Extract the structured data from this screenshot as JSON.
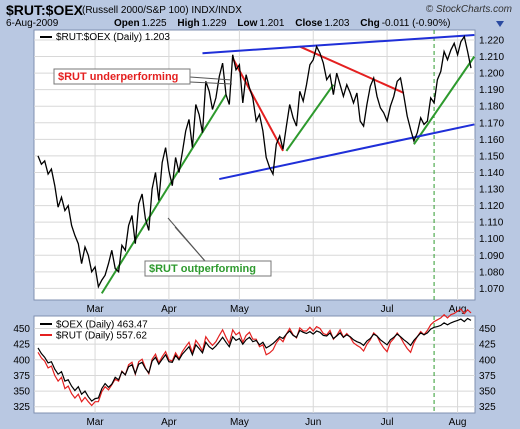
{
  "header": {
    "symbol": "$RUT:$OEX",
    "description": "(Russell 2000/S&P 100)  INDX/INDX",
    "credit": "© StockCharts.com",
    "date": "6-Aug-2009",
    "open_label": "Open",
    "open": "1.225",
    "high_label": "High",
    "high": "1.229",
    "low_label": "Low",
    "low": "1.201",
    "close_label": "Close",
    "close": "1.203",
    "chg_label": "Chg",
    "chg": "-0.011 (-0.90%)"
  },
  "colors": {
    "ratio_line": "#000000",
    "trend_green": "#2e9a2e",
    "trend_red": "#e42020",
    "channel_blue": "#1f2fd8",
    "oex_line": "#000000",
    "rut_line": "#e42020",
    "marker_dashed": "#2e9a2e",
    "panel_bg": "#ffffff",
    "frame_bg": "#b9c8e2"
  },
  "chart_data": [
    {
      "type": "line",
      "panel": "main",
      "legend": "$RUT:$OEX (Daily) 1.203",
      "x_labels": [
        "Mar",
        "Apr",
        "May",
        "Jun",
        "Jul",
        "Aug"
      ],
      "y_ticks": [
        1.07,
        1.08,
        1.09,
        1.1,
        1.11,
        1.12,
        1.13,
        1.14,
        1.15,
        1.16,
        1.17,
        1.18,
        1.19,
        1.2,
        1.21,
        1.22
      ],
      "ylim": [
        1.063,
        1.226
      ],
      "series": [
        {
          "name": "$RUT:$OEX (Daily)",
          "values": [
            1.15,
            1.145,
            1.147,
            1.139,
            1.142,
            1.132,
            1.119,
            1.125,
            1.117,
            1.12,
            1.108,
            1.102,
            1.097,
            1.085,
            1.095,
            1.09,
            1.08,
            1.083,
            1.071,
            1.075,
            1.078,
            1.085,
            1.093,
            1.082,
            1.08,
            1.096,
            1.093,
            1.108,
            1.114,
            1.097,
            1.121,
            1.127,
            1.112,
            1.105,
            1.13,
            1.14,
            1.123,
            1.146,
            1.155,
            1.141,
            1.132,
            1.149,
            1.14,
            1.152,
            1.165,
            1.172,
            1.155,
            1.181,
            1.175,
            1.164,
            1.195,
            1.189,
            1.178,
            1.185,
            1.198,
            1.206,
            1.187,
            1.181,
            1.211,
            1.202,
            1.205,
            1.182,
            1.199,
            1.191,
            1.185,
            1.171,
            1.175,
            1.165,
            1.149,
            1.143,
            1.139,
            1.157,
            1.162,
            1.154,
            1.168,
            1.181,
            1.173,
            1.168,
            1.189,
            1.183,
            1.193,
            1.205,
            1.208,
            1.216,
            1.212,
            1.206,
            1.196,
            1.199,
            1.187,
            1.2,
            1.193,
            1.186,
            1.193,
            1.188,
            1.182,
            1.188,
            1.171,
            1.168,
            1.181,
            1.192,
            1.197,
            1.186,
            1.179,
            1.176,
            1.171,
            1.18,
            1.186,
            1.195,
            1.197,
            1.186,
            1.174,
            1.166,
            1.159,
            1.164,
            1.173,
            1.169,
            1.171,
            1.185,
            1.182,
            1.196,
            1.201,
            1.213,
            1.208,
            1.214,
            1.218,
            1.211,
            1.219,
            1.222,
            1.213,
            1.203
          ]
        }
      ],
      "trendlines": [
        {
          "color": "green",
          "from": [
            19,
            1.067
          ],
          "to": [
            56,
            1.187
          ]
        },
        {
          "color": "green",
          "from": [
            74,
            1.153
          ],
          "to": [
            88,
            1.193
          ]
        },
        {
          "color": "green",
          "from": [
            112,
            1.157
          ],
          "to": [
            130,
            1.21
          ]
        },
        {
          "color": "red",
          "from": [
            58,
            1.209
          ],
          "to": [
            73,
            1.153
          ]
        },
        {
          "color": "red",
          "from": [
            78,
            1.216
          ],
          "to": [
            109,
            1.188
          ]
        },
        {
          "color": "blue",
          "from": [
            49,
            1.212
          ],
          "to": [
            130,
            1.223
          ]
        },
        {
          "color": "blue",
          "from": [
            54,
            1.136
          ],
          "to": [
            130,
            1.169
          ]
        }
      ],
      "annotations": [
        {
          "text": "$RUT underperforming",
          "color": "red"
        },
        {
          "text": "$RUT outperforming",
          "color": "green"
        }
      ]
    },
    {
      "type": "line",
      "panel": "lower",
      "y_ticks": [
        325,
        350,
        375,
        400,
        425,
        450
      ],
      "ylim": [
        315,
        470
      ],
      "series": [
        {
          "name": "$OEX (Daily)",
          "legend": "$OEX (Daily) 463.47",
          "values": [
            419,
            410,
            404,
            395,
            397,
            385,
            377,
            381,
            366,
            368,
            358,
            351,
            357,
            345,
            350,
            341,
            334,
            338,
            339,
            354,
            362,
            356,
            361,
            372,
            368,
            381,
            376,
            389,
            392,
            378,
            393,
            396,
            386,
            379,
            398,
            404,
            393,
            401,
            408,
            397,
            396,
            407,
            400,
            409,
            415,
            421,
            408,
            424,
            418,
            411,
            428,
            421,
            417,
            422,
            429,
            436,
            428,
            421,
            437,
            431,
            434,
            425,
            432,
            436,
            429,
            431,
            424,
            428,
            419,
            422,
            426,
            431,
            437,
            434,
            441,
            446,
            439,
            436,
            447,
            444,
            442,
            445,
            441,
            446,
            444,
            439,
            438,
            443,
            434,
            438,
            443,
            436,
            440,
            437,
            432,
            429,
            427,
            423,
            430,
            434,
            441,
            438,
            432,
            428,
            424,
            432,
            436,
            441,
            437,
            432,
            428,
            423,
            431,
            437,
            443,
            440,
            443,
            449,
            452,
            453,
            455,
            459,
            456,
            459,
            461,
            463,
            465,
            461,
            466,
            463
          ]
        },
        {
          "name": "$RUT (Daily)",
          "legend": "$RUT (Daily) 557.62",
          "values": [
            412,
            403,
            398,
            387,
            390,
            375,
            366,
            372,
            354,
            358,
            346,
            339,
            345,
            333,
            340,
            333,
            327,
            333,
            333,
            349,
            357,
            352,
            360,
            369,
            366,
            382,
            376,
            392,
            396,
            377,
            397,
            401,
            387,
            378,
            401,
            409,
            395,
            405,
            413,
            400,
            398,
            411,
            402,
            413,
            421,
            428,
            411,
            431,
            424,
            414,
            437,
            429,
            423,
            429,
            439,
            448,
            436,
            426,
            448,
            440,
            444,
            428,
            439,
            444,
            433,
            433,
            421,
            424,
            408,
            411,
            416,
            427,
            434,
            429,
            441,
            450,
            440,
            435,
            451,
            446,
            446,
            452,
            446,
            453,
            450,
            442,
            440,
            447,
            433,
            439,
            448,
            436,
            442,
            436,
            427,
            423,
            420,
            414,
            425,
            432,
            443,
            438,
            427,
            419,
            413,
            428,
            434,
            443,
            436,
            426,
            418,
            412,
            427,
            437,
            445,
            440,
            447,
            456,
            461,
            464,
            467,
            472,
            467,
            472,
            474,
            478,
            481,
            474,
            480,
            475
          ]
        }
      ]
    }
  ]
}
